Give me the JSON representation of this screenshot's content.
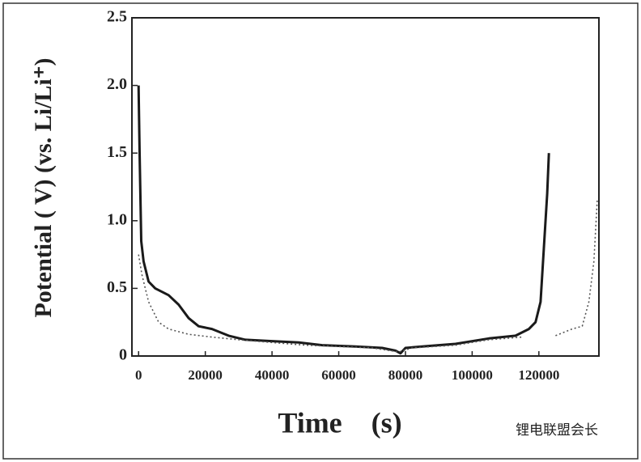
{
  "chart_data": {
    "type": "line",
    "x_label": "Time    (s)",
    "y_label": "Potential ( V) (vs. Li/Li⁺)",
    "watermark": "锂电联盟会长",
    "xlim": [
      -2000,
      138000
    ],
    "ylim": [
      0,
      2.5
    ],
    "xticks": [
      0,
      20000,
      40000,
      60000,
      80000,
      100000,
      120000
    ],
    "yticks": [
      0,
      0.5,
      {
        "value": 1,
        "label": "1.0"
      },
      1.5,
      {
        "value": 2,
        "label": "2.0"
      },
      2.5
    ],
    "series": [
      {
        "color": "#1a1a1a",
        "style": "solid",
        "x": [
          0,
          300,
          800,
          1500,
          3000,
          5000,
          9000,
          12000,
          15000,
          18000,
          22000,
          27000,
          32000,
          40000,
          48000,
          55000,
          65000,
          73000,
          77000,
          78500,
          80000,
          85000,
          95000,
          105000,
          113000,
          117000,
          119000,
          120500,
          121500,
          122500,
          123000
        ],
        "values": [
          2.0,
          1.5,
          0.85,
          0.7,
          0.55,
          0.5,
          0.45,
          0.38,
          0.28,
          0.22,
          0.2,
          0.15,
          0.12,
          0.11,
          0.1,
          0.08,
          0.07,
          0.06,
          0.04,
          0.02,
          0.06,
          0.07,
          0.09,
          0.13,
          0.15,
          0.2,
          0.25,
          0.4,
          0.8,
          1.2,
          1.5
        ]
      },
      {
        "color": "#555555",
        "style": "dotted",
        "x": [
          0,
          1000,
          3000,
          6000,
          9000,
          15000,
          22000,
          30000,
          40000,
          50000,
          60000,
          70000,
          78000,
          82000,
          95000,
          105000,
          115000,
          120000,
          125000,
          130000,
          133000,
          135000,
          136500,
          137500
        ],
        "values": [
          0.75,
          0.6,
          0.4,
          0.25,
          0.2,
          0.16,
          0.14,
          0.12,
          0.1,
          0.08,
          0.07,
          0.06,
          0.03,
          0.06,
          0.08,
          0.12,
          0.14,
          null,
          0.15,
          0.2,
          0.22,
          0.4,
          0.7,
          1.15
        ]
      }
    ]
  }
}
